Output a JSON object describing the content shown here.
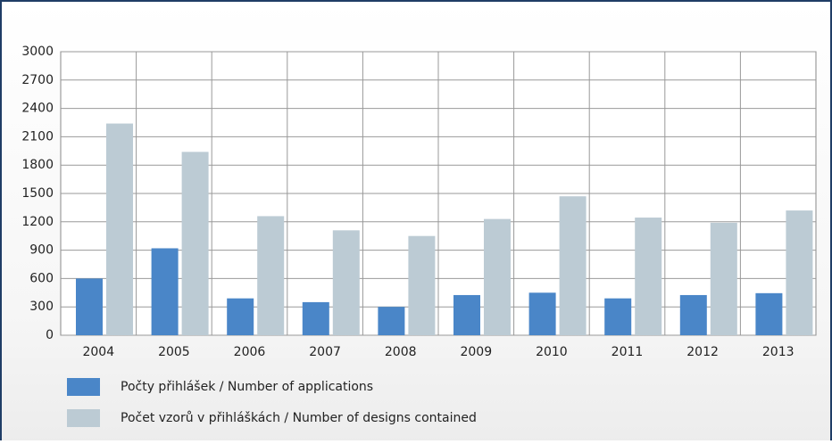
{
  "chart_data": {
    "type": "bar",
    "categories": [
      "2004",
      "2005",
      "2006",
      "2007",
      "2008",
      "2009",
      "2010",
      "2011",
      "2012",
      "2013"
    ],
    "series": [
      {
        "name": "Počty přihlášek / Number of applications",
        "color": "#4a86c8",
        "values": [
          600,
          920,
          390,
          350,
          300,
          425,
          450,
          390,
          425,
          445
        ]
      },
      {
        "name": "Počet vzorů v přihláškách / Number of designs contained",
        "color": "#bccbd4",
        "values": [
          2240,
          1940,
          1260,
          1110,
          1050,
          1230,
          1470,
          1245,
          1190,
          1320
        ]
      }
    ],
    "ylim": [
      0,
      3000
    ],
    "yticks": [
      0,
      300,
      600,
      900,
      1200,
      1500,
      1800,
      2100,
      2400,
      2700,
      3000
    ],
    "grid": true
  }
}
